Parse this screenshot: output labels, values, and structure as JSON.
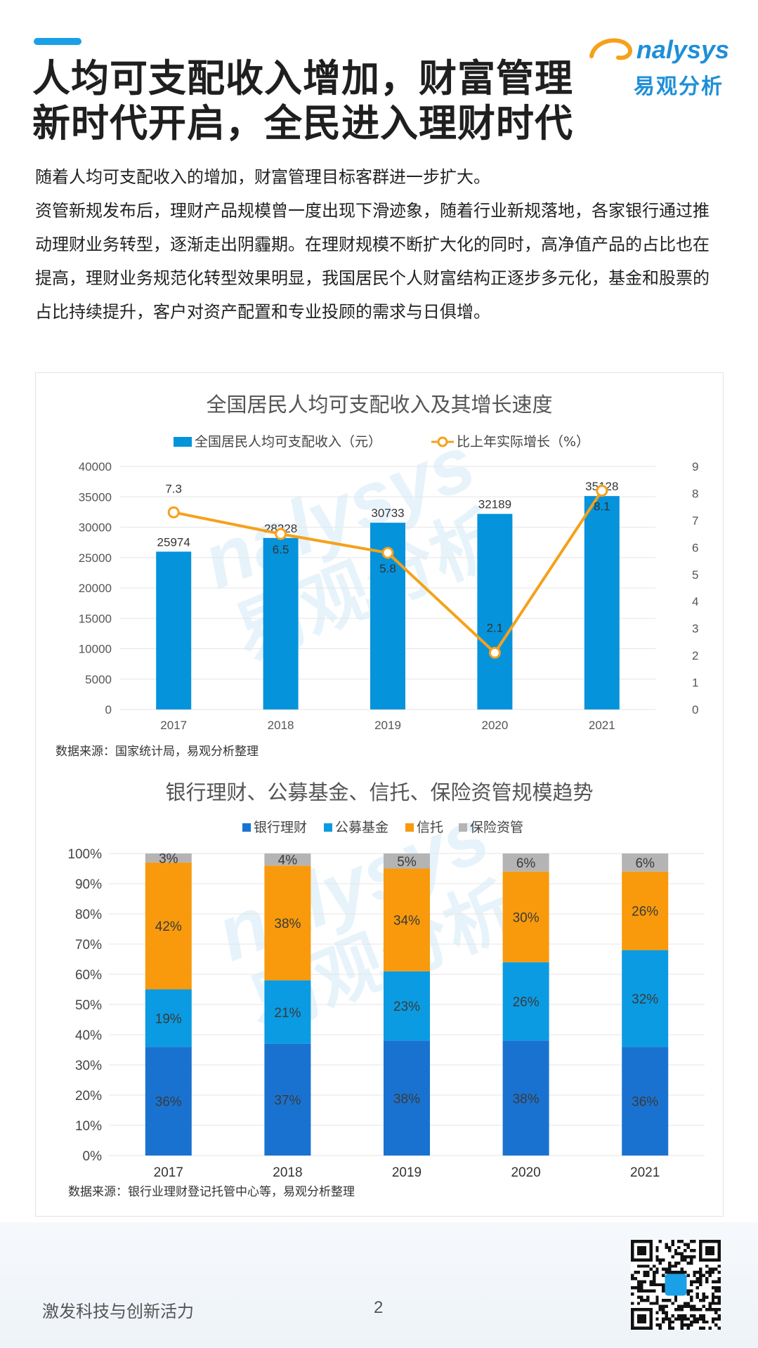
{
  "header": {
    "title_line1": "人均可支配收入增加，财富管理",
    "title_line2": "新时代开启，全民进入理财时代",
    "logo_en": "nalysys",
    "logo_cn": "易观分析"
  },
  "paragraphs": [
    "随着人均可支配收入的增加，财富管理目标客群进一步扩大。",
    "资管新规发布后，理财产品规模曾一度出现下滑迹象，随着行业新规落地，各家银行通过推动理财业务转型，逐渐走出阴霾期。在理财规模不断扩大化的同时，高净值产品的占比也在提高，理财业务规范化转型效果明显，我国居民个人财富结构正逐步多元化，基金和股票的占比持续提升，客户对资产配置和专业投顾的需求与日俱增。"
  ],
  "watermark_cn": "易观分析",
  "chart_data": [
    {
      "type": "bar+line",
      "title": "全国居民人均可支配收入及其增长速度",
      "categories": [
        "2017",
        "2018",
        "2019",
        "2020",
        "2021"
      ],
      "series": [
        {
          "name": "全国居民人均可支配收入（元）",
          "type": "bar",
          "axis": "left",
          "color": "#0593dc",
          "values": [
            25974,
            28228,
            30733,
            32189,
            35128
          ]
        },
        {
          "name": "比上年实际增长（%）",
          "type": "line",
          "axis": "right",
          "color": "#f5a11b",
          "values": [
            7.3,
            6.5,
            5.8,
            2.1,
            8.1
          ]
        }
      ],
      "y_left": {
        "min": 0,
        "max": 40000,
        "ticks": [
          "0",
          "5000",
          "10000",
          "15000",
          "20000",
          "25000",
          "30000",
          "35000",
          "40000"
        ]
      },
      "y_right": {
        "min": 0,
        "max": 9,
        "ticks": [
          "0",
          "1",
          "2",
          "3",
          "4",
          "5",
          "6",
          "7",
          "8",
          "9"
        ]
      },
      "legend": "top",
      "grid": true,
      "source": "数据来源：国家统计局，易观分析整理"
    },
    {
      "type": "stacked-bar-100",
      "title": "银行理财、公募基金、信托、保险资管规模趋势",
      "categories": [
        "2017",
        "2018",
        "2019",
        "2020",
        "2021"
      ],
      "series": [
        {
          "name": "银行理财",
          "color": "#1a72d0",
          "values": [
            36,
            37,
            38,
            38,
            36
          ]
        },
        {
          "name": "公募基金",
          "color": "#0b9be2",
          "values": [
            19,
            21,
            23,
            26,
            32
          ]
        },
        {
          "name": "信托",
          "color": "#f89a0c",
          "values": [
            42,
            38,
            34,
            30,
            26
          ]
        },
        {
          "name": "保险资管",
          "color": "#b4b4b4",
          "values": [
            3,
            4,
            5,
            6,
            6
          ]
        }
      ],
      "y_ticks": [
        "0%",
        "10%",
        "20%",
        "30%",
        "40%",
        "50%",
        "60%",
        "70%",
        "80%",
        "90%",
        "100%"
      ],
      "legend": "top",
      "grid": true,
      "source": "数据来源：银行业理财登记托管中心等，易观分析整理"
    }
  ],
  "footer": {
    "slogan": "激发科技与创新活力",
    "page": "2"
  }
}
